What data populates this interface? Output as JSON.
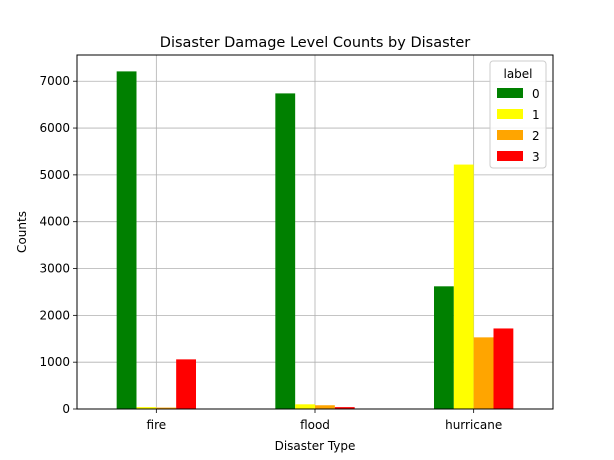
{
  "chart_data": {
    "type": "bar",
    "title": "Disaster Damage Level Counts by Disaster",
    "xlabel": "Disaster Type",
    "ylabel": "Counts",
    "categories": [
      "fire",
      "flood",
      "hurricane"
    ],
    "series": [
      {
        "name": "0",
        "color": "#008000",
        "values": [
          7210,
          6740,
          2620
        ]
      },
      {
        "name": "1",
        "color": "#ffff00",
        "values": [
          40,
          100,
          5220
        ]
      },
      {
        "name": "2",
        "color": "#ffa500",
        "values": [
          30,
          80,
          1530
        ]
      },
      {
        "name": "3",
        "color": "#ff0000",
        "values": [
          1060,
          40,
          1720
        ]
      }
    ],
    "ylim": [
      0,
      7560
    ],
    "yticks": [
      0,
      1000,
      2000,
      3000,
      4000,
      5000,
      6000,
      7000
    ],
    "grid": true,
    "legend": {
      "title": "label",
      "position": "top-right"
    }
  }
}
